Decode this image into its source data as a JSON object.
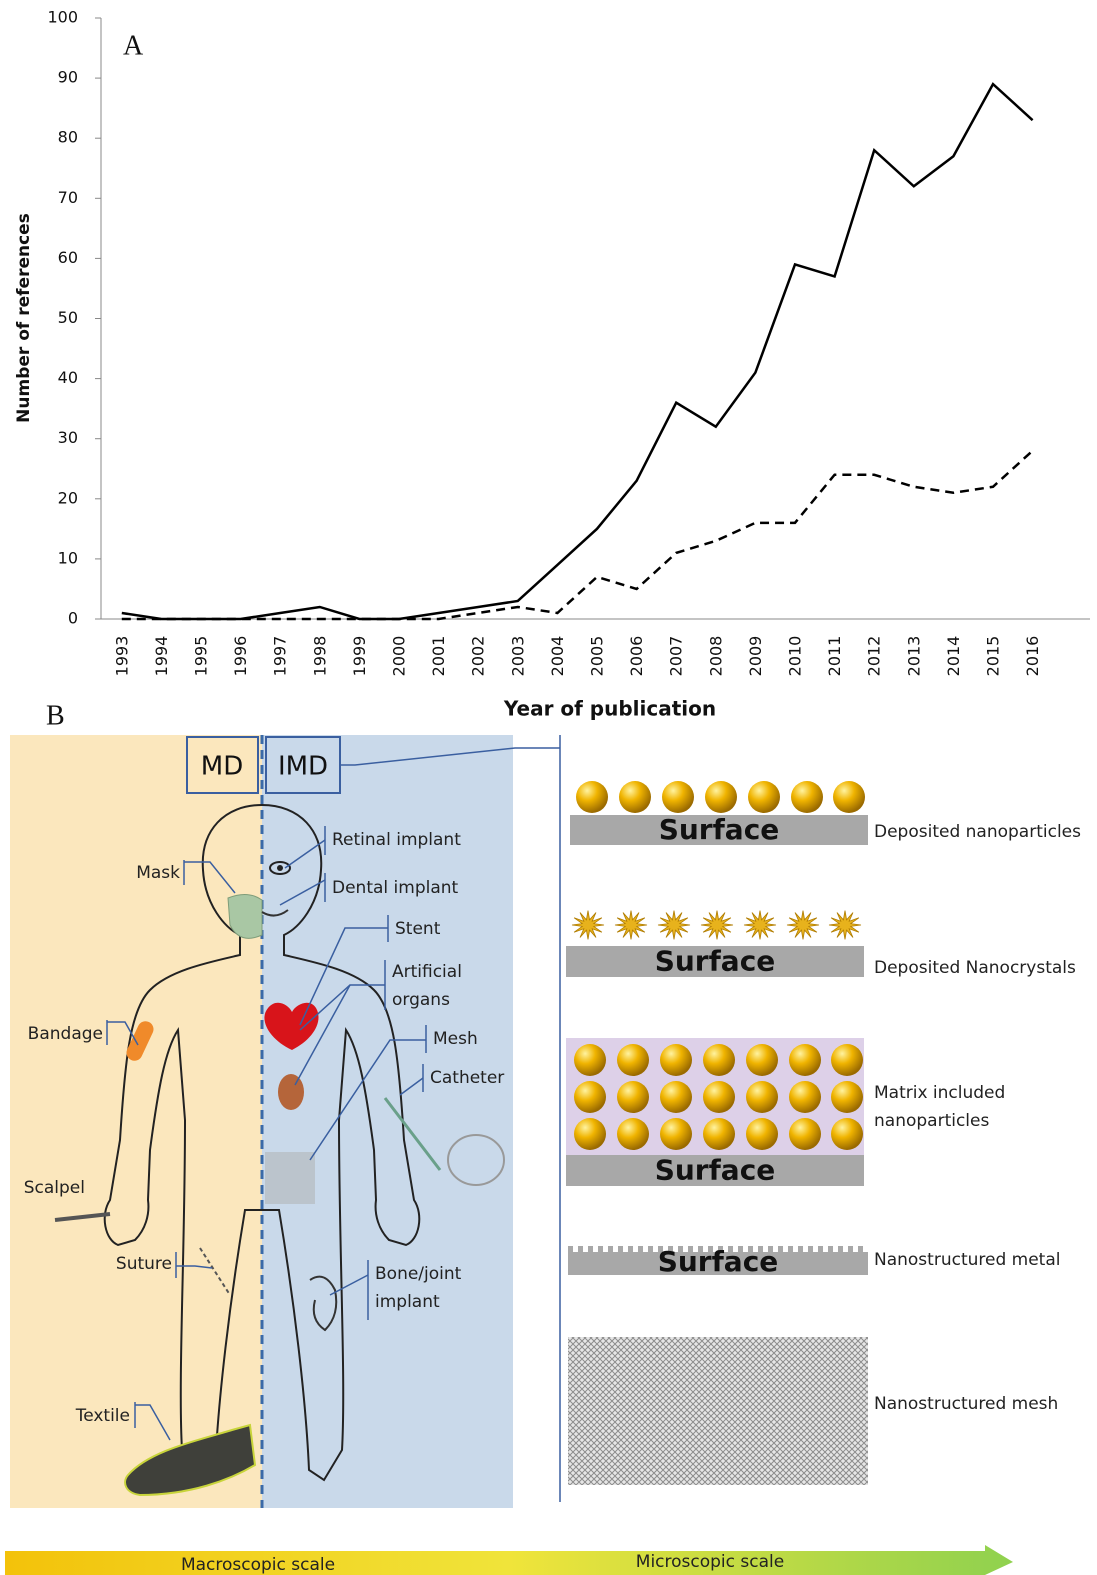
{
  "chart_data": {
    "type": "line",
    "panel_label": "A",
    "y_label": "Number of references",
    "x_label": "Year of publication",
    "categories": [
      "1993",
      "1994",
      "1995",
      "1996",
      "1997",
      "1998",
      "1999",
      "2000",
      "2001",
      "2002",
      "2003",
      "2004",
      "2005",
      "2006",
      "2007",
      "2008",
      "2009",
      "2010",
      "2011",
      "2012",
      "2013",
      "2014",
      "2015",
      "2016"
    ],
    "series": [
      {
        "color": "#000000",
        "dash": "solid",
        "values": [
          1,
          0,
          0,
          0,
          1,
          2,
          0,
          0,
          1,
          2,
          3,
          9,
          15,
          23,
          36,
          32,
          41,
          59,
          57,
          78,
          72,
          77,
          89,
          83
        ]
      },
      {
        "color": "#000000",
        "dash": "dashed",
        "values": [
          0,
          0,
          0,
          0,
          0,
          0,
          0,
          0,
          0,
          1,
          2,
          1,
          7,
          5,
          11,
          13,
          16,
          16,
          24,
          24,
          22,
          21,
          22,
          28
        ]
      }
    ],
    "ylim": [
      0,
      100
    ],
    "yticks": [
      0,
      10,
      20,
      30,
      40,
      50,
      60,
      70,
      80,
      90,
      100
    ]
  },
  "diagram": {
    "panel_label": "B",
    "md": "MD",
    "imd": "IMD",
    "md_items": [
      [
        "Mask"
      ],
      [
        "Bandage"
      ],
      [
        "Scalpel"
      ],
      [
        "Suture"
      ],
      [
        "Textile"
      ]
    ],
    "imd_items": [
      [
        "Retinal implant"
      ],
      [
        "Dental implant"
      ],
      [
        "Stent"
      ],
      [
        "Artificial",
        "organs"
      ],
      [
        "Mesh"
      ],
      [
        "Catheter"
      ],
      [
        "Bone/joint",
        "implant"
      ]
    ],
    "layers": [
      {
        "surface": "Surface",
        "label": [
          "Deposited nanoparticles"
        ]
      },
      {
        "surface": "Surface",
        "label": [
          "Deposited Nanocrystals"
        ]
      },
      {
        "surface": "Surface",
        "label": [
          "Matrix included",
          "nanoparticles"
        ]
      },
      {
        "surface": "Surface",
        "label": [
          "Nanostructured metal"
        ]
      },
      {
        "label": [
          "Nanostructured mesh"
        ]
      }
    ],
    "scale": [
      "Macroscopic scale",
      "Microscopic scale"
    ]
  }
}
